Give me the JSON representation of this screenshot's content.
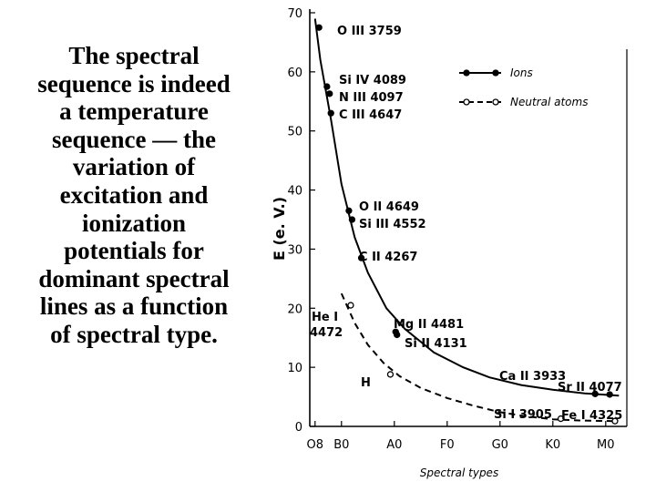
{
  "caption": "The spectral\nsequence is indeed\na temperature\nsequence — the\nvariation of\nexcitation and\nionization\npotentials for\ndominant spectral\nlines as a function\nof spectral type.",
  "chart_data": {
    "type": "line",
    "title": "",
    "xlabel": "Spectral types",
    "ylabel": "E (e. V.)",
    "categories": [
      "O8",
      "B0",
      "A0",
      "F0",
      "G0",
      "K0",
      "M0"
    ],
    "ylim": [
      0,
      70
    ],
    "yticks": [
      0,
      10,
      20,
      30,
      40,
      50,
      60,
      70
    ],
    "grid": false,
    "legend_position": "top-right",
    "series": [
      {
        "name": "Ions",
        "style": "solid",
        "marker": "filled-circle",
        "curve": [
          [
            0.0,
            69
          ],
          [
            0.2,
            62
          ],
          [
            0.6,
            52
          ],
          [
            1.0,
            41
          ],
          [
            1.5,
            32
          ],
          [
            2.0,
            26
          ],
          [
            2.7,
            20
          ],
          [
            3.4,
            16.5
          ],
          [
            4.5,
            12.5
          ],
          [
            5.6,
            10
          ],
          [
            6.6,
            8.3
          ],
          [
            7.8,
            7.0
          ],
          [
            9.0,
            6.2
          ],
          [
            10.2,
            5.6
          ],
          [
            11.5,
            5.2
          ]
        ],
        "points": [
          {
            "label_key": "O3",
            "x": 0.15,
            "y": 67.5
          },
          {
            "label_key": "Si4",
            "x": 0.45,
            "y": 57.5
          },
          {
            "label_key": "N3",
            "x": 0.55,
            "y": 56.3
          },
          {
            "label_key": "C3",
            "x": 0.6,
            "y": 53.0
          },
          {
            "label_key": "O2",
            "x": 1.28,
            "y": 36.5
          },
          {
            "label_key": "Si3",
            "x": 1.4,
            "y": 35.0
          },
          {
            "label_key": "C2",
            "x": 1.75,
            "y": 28.5
          },
          {
            "label_key": "Mg2",
            "x": 3.05,
            "y": 16.0
          },
          {
            "label_key": "Si2",
            "x": 3.1,
            "y": 15.5
          },
          {
            "label_key": "Sr2",
            "x": 10.6,
            "y": 5.5
          },
          {
            "label_key": "Sr2b",
            "x": 11.15,
            "y": 5.4
          }
        ]
      },
      {
        "name": "Neutral atoms",
        "style": "dashed",
        "marker": "open-circle",
        "curve": [
          [
            1.0,
            22.5
          ],
          [
            1.5,
            17.5
          ],
          [
            2.0,
            13.8
          ],
          [
            2.6,
            10.7
          ],
          [
            3.2,
            8.5
          ],
          [
            4.0,
            6.5
          ],
          [
            5.0,
            4.8
          ],
          [
            6.0,
            3.5
          ],
          [
            7.0,
            2.4
          ],
          [
            8.0,
            1.7
          ],
          [
            9.0,
            1.2
          ],
          [
            10.0,
            1.0
          ],
          [
            11.3,
            0.9
          ]
        ],
        "points": [
          {
            "label_key": "He1",
            "x": 1.35,
            "y": 20.5
          },
          {
            "label_key": "H",
            "x": 2.85,
            "y": 8.8
          },
          {
            "label_key": "Si1",
            "x": 9.3,
            "y": 1.3
          },
          {
            "label_key": "Fe1",
            "x": 11.35,
            "y": 0.9
          }
        ]
      }
    ],
    "annotations": {
      "O3": {
        "text": "O III 3759"
      },
      "Si4": {
        "text": "Si IV 4089"
      },
      "N3": {
        "text": "N III 4097"
      },
      "C3": {
        "text": "C III 4647"
      },
      "O2": {
        "text": "O II 4649"
      },
      "Si3": {
        "text": "Si III 4552"
      },
      "C2": {
        "text": "C II 4267"
      },
      "He1a": {
        "text": "He I"
      },
      "He1b": {
        "text": "4472"
      },
      "Mg2": {
        "text": "Mg II 4481"
      },
      "Si2": {
        "text": "Si II 4131"
      },
      "Ca2": {
        "text": "Ca II 3933"
      },
      "Sr2": {
        "text": "Sr II 4077"
      },
      "H": {
        "text": "H"
      },
      "Si1": {
        "text": "Si I 3905"
      },
      "Fe1": {
        "text": "Fe I 4325"
      }
    },
    "legend": [
      {
        "series": 0,
        "label": "Ions"
      },
      {
        "series": 1,
        "label": "Neutral atoms"
      }
    ]
  }
}
